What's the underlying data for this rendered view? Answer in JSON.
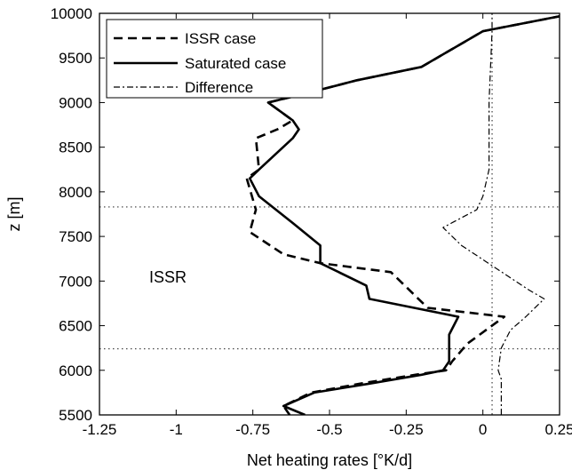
{
  "chart_data": {
    "type": "line",
    "xlabel": "Net heating rates [°K/d]",
    "ylabel": "z [m]",
    "xlim": [
      -1.25,
      0.25
    ],
    "ylim": [
      5500,
      10000
    ],
    "xticks": [
      "-1.25",
      "-1",
      "-0.75",
      "-0.5",
      "-0.25",
      "0",
      "0.25"
    ],
    "xtick_values": [
      -1.25,
      -1,
      -0.75,
      -0.5,
      -0.25,
      0,
      0.25
    ],
    "yticks": [
      "5500",
      "6000",
      "6500",
      "7000",
      "7500",
      "8000",
      "8500",
      "9000",
      "9500",
      "10000"
    ],
    "ytick_values": [
      5500,
      6000,
      6500,
      7000,
      7500,
      8000,
      8500,
      9000,
      9500,
      10000
    ],
    "legend_position": "top-left",
    "grid": false,
    "annotation": "ISSR",
    "reference_lines": {
      "horizontal": [
        6240,
        7830
      ],
      "vertical": [
        0.03
      ]
    },
    "series": [
      {
        "name": "ISSR case",
        "style": "dashed",
        "x": [
          -0.63,
          -0.65,
          -0.56,
          -0.4,
          -0.22,
          -0.12,
          -0.1,
          -0.05,
          0.07,
          -0.18,
          -0.3,
          -0.53,
          -0.65,
          -0.76,
          -0.74,
          -0.77,
          -0.73,
          -0.74,
          -0.67,
          -0.62,
          -0.7,
          -0.58,
          -0.41,
          -0.2,
          0.0,
          0.3
        ],
        "y": [
          5500,
          5600,
          5750,
          5850,
          5950,
          6000,
          6100,
          6300,
          6600,
          6700,
          7100,
          7200,
          7300,
          7550,
          7800,
          8150,
          8250,
          8600,
          8700,
          8800,
          9000,
          9100,
          9250,
          9400,
          9800,
          10000
        ]
      },
      {
        "name": "Saturated case",
        "style": "solid",
        "x": [
          -0.58,
          -0.65,
          -0.55,
          -0.37,
          -0.2,
          -0.13,
          -0.11,
          -0.11,
          -0.08,
          -0.37,
          -0.38,
          -0.53,
          -0.53,
          -0.62,
          -0.73,
          -0.76,
          -0.73,
          -0.62,
          -0.6,
          -0.62,
          -0.7,
          -0.58,
          -0.41,
          -0.2,
          0.0,
          0.3
        ],
        "y": [
          5500,
          5600,
          5750,
          5850,
          5950,
          6000,
          6100,
          6400,
          6600,
          6800,
          6950,
          7200,
          7400,
          7650,
          7950,
          8150,
          8250,
          8600,
          8700,
          8800,
          9000,
          9100,
          9250,
          9400,
          9800,
          10000
        ]
      },
      {
        "name": "Difference",
        "style": "dashdot",
        "x": [
          0.06,
          0.06,
          0.05,
          0.06,
          0.09,
          0.14,
          0.2,
          0.15,
          -0.07,
          -0.13,
          -0.02,
          0.0,
          0.02,
          0.02,
          0.03,
          0.03
        ],
        "y": [
          5500,
          5900,
          6000,
          6250,
          6450,
          6600,
          6800,
          6900,
          7400,
          7600,
          7800,
          7950,
          8250,
          9000,
          9800,
          10000
        ]
      }
    ]
  }
}
